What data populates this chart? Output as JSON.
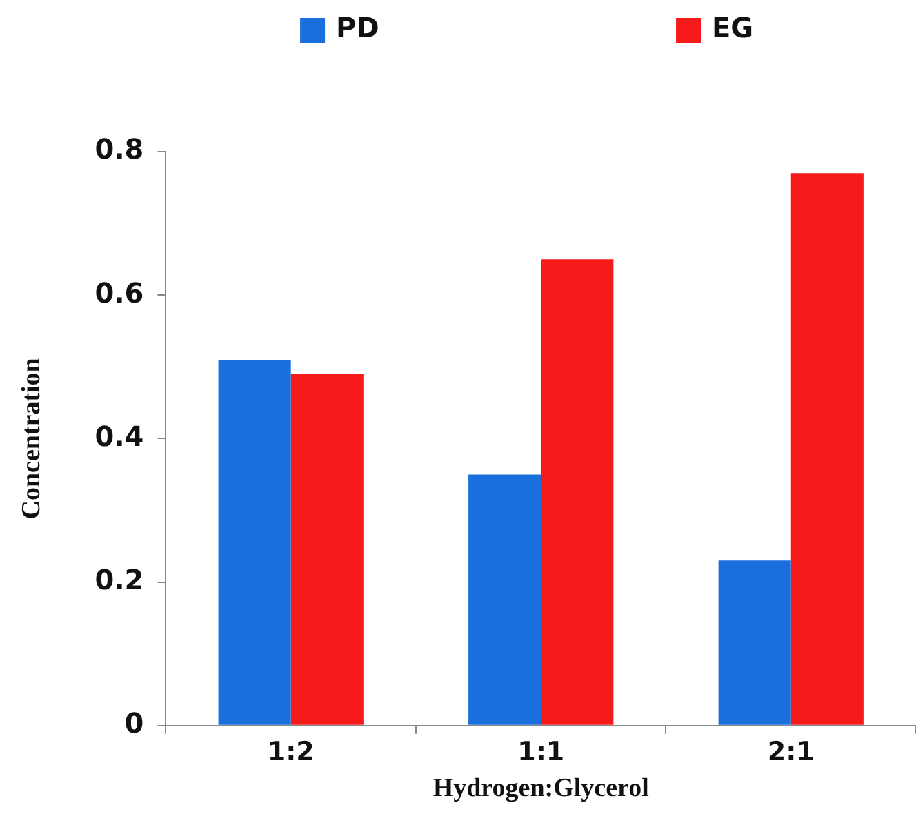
{
  "chart_data": {
    "type": "bar",
    "xlabel": "Hydrogen:Glycerol",
    "ylabel": "Concentration",
    "categories": [
      "1:2",
      "1:1",
      "2:1"
    ],
    "series": [
      {
        "name": "PD",
        "color": "#1a6fdc",
        "values": [
          0.51,
          0.35,
          0.23
        ]
      },
      {
        "name": "EG",
        "color": "#f71a1a",
        "values": [
          0.49,
          0.65,
          0.77
        ]
      }
    ],
    "ylim": [
      0,
      0.8
    ],
    "yticks": [
      0,
      0.2,
      0.4,
      0.6,
      0.8
    ],
    "grid": false,
    "legend": "top"
  }
}
